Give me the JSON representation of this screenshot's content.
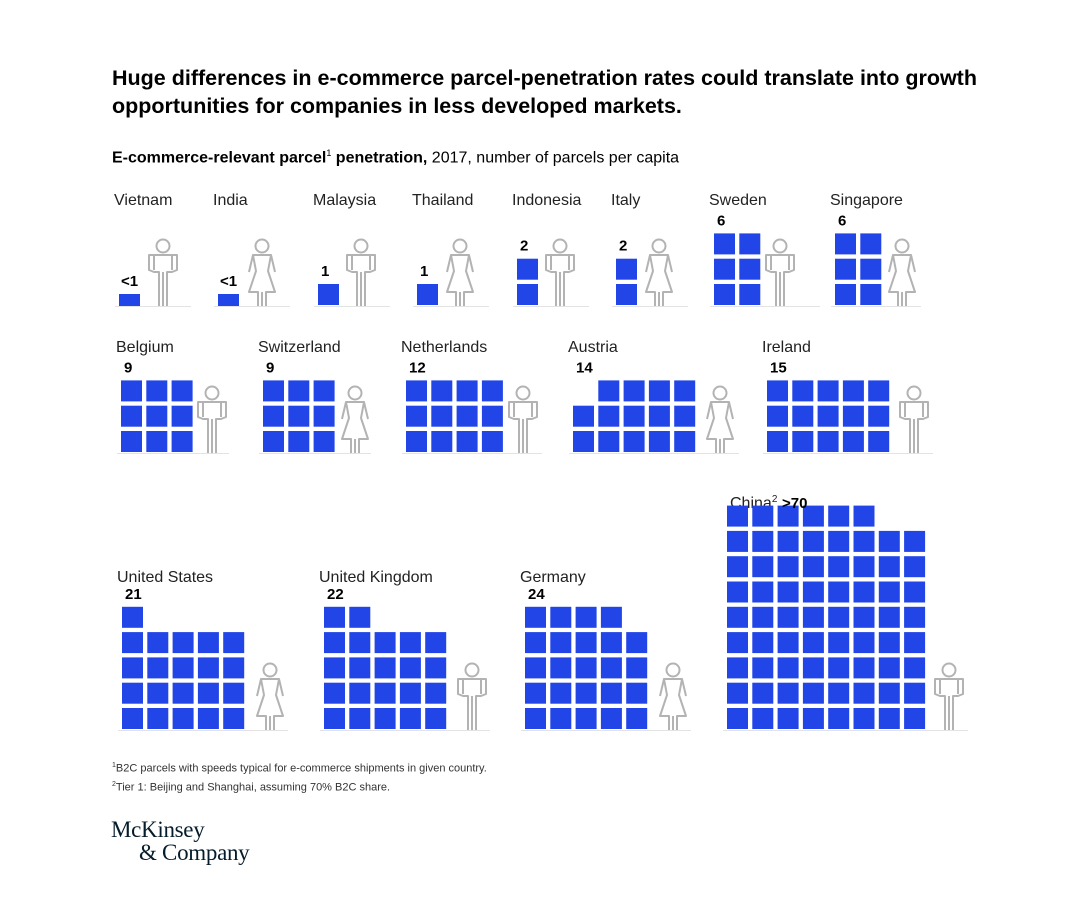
{
  "title": "Huge differences in e-commerce parcel-penetration rates could translate into growth opportunities for companies in less developed markets.",
  "subtitle": {
    "bold": "E-commerce-relevant parcel",
    "sup": "1",
    "bold2": " penetration,",
    "rest": " 2017, number of parcels per capita"
  },
  "chart_data": {
    "type": "bar",
    "unit": "number of parcels per capita",
    "year": "2017",
    "countries": [
      {
        "name": "Vietnam",
        "label": "<1",
        "value": 0.5
      },
      {
        "name": "India",
        "label": "<1",
        "value": 0.5
      },
      {
        "name": "Malaysia",
        "label": "1",
        "value": 1
      },
      {
        "name": "Thailand",
        "label": "1",
        "value": 1
      },
      {
        "name": "Indonesia",
        "label": "2",
        "value": 2
      },
      {
        "name": "Italy",
        "label": "2",
        "value": 2
      },
      {
        "name": "Sweden",
        "label": "6",
        "value": 6
      },
      {
        "name": "Singapore",
        "label": "6",
        "value": 6
      },
      {
        "name": "Belgium",
        "label": "9",
        "value": 9
      },
      {
        "name": "Switzerland",
        "label": "9",
        "value": 9
      },
      {
        "name": "Netherlands",
        "label": "12",
        "value": 12
      },
      {
        "name": "Austria",
        "label": "14",
        "value": 14
      },
      {
        "name": "Ireland",
        "label": "15",
        "value": 15
      },
      {
        "name": "United States",
        "label": "21",
        "value": 21
      },
      {
        "name": "United Kingdom",
        "label": "22",
        "value": 22
      },
      {
        "name": "Germany",
        "label": "24",
        "value": 24
      },
      {
        "name": "China",
        "name_sup": "2",
        "label": ">70",
        "value": 70
      }
    ],
    "figures": [
      "man",
      "woman",
      "man",
      "woman",
      "man",
      "woman",
      "man",
      "woman",
      "man",
      "woman",
      "man",
      "woman",
      "man",
      "woman",
      "man",
      "woman",
      "man"
    ]
  },
  "colors": {
    "parcel": "#2145e6",
    "figure": "#b3b3b3",
    "text": "#000000"
  },
  "footnotes": [
    {
      "sup": "1",
      "text": "B2C parcels with speeds typical for e-commerce shipments in given country."
    },
    {
      "sup": "2",
      "text": "Tier 1: Beijing and Shanghai, assuming 70% B2C share."
    }
  ],
  "logo": {
    "line1": "McKinsey",
    "line2": "& Company"
  }
}
